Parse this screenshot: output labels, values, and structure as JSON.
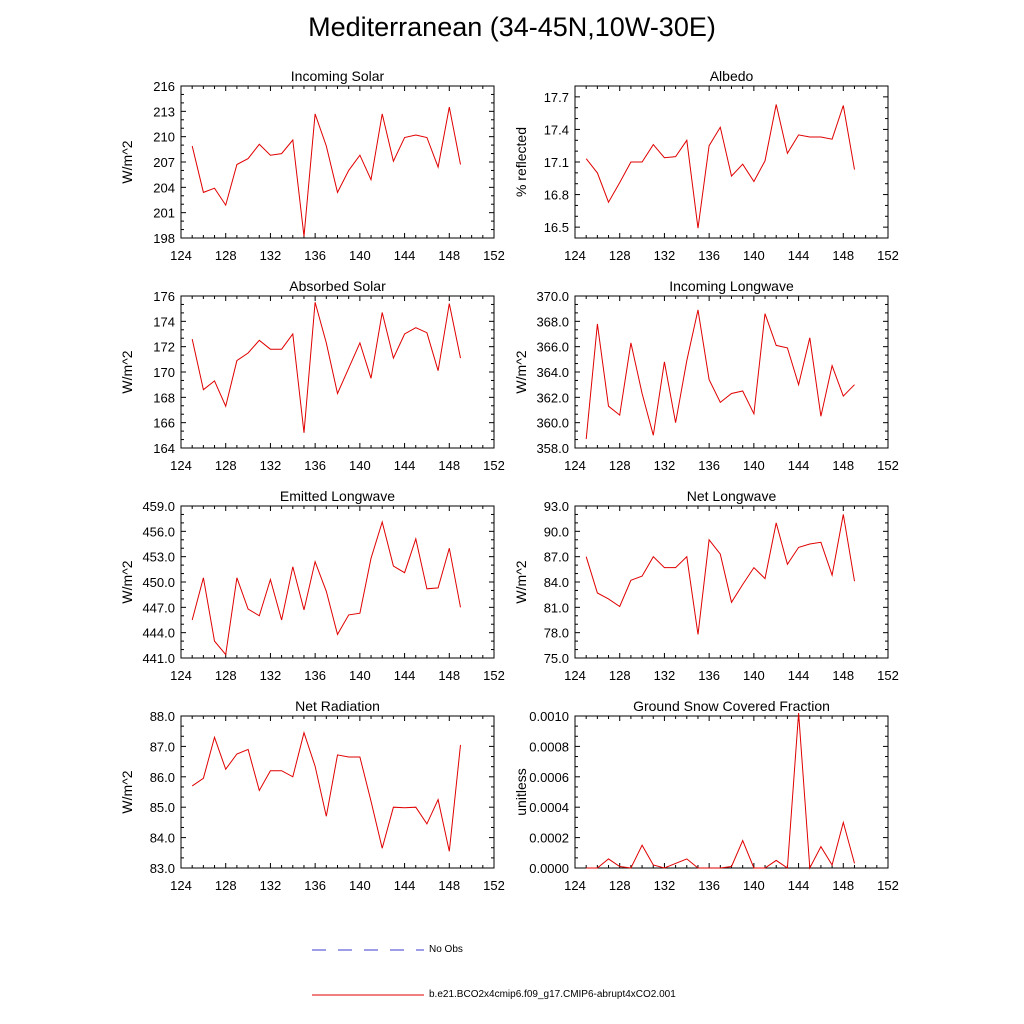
{
  "title": "Mediterranean (34-45N,10W-30E)",
  "colors": {
    "model": "#e00000",
    "obs": "#3a3ad0",
    "axis": "#000000"
  },
  "legend": {
    "obs_label": "No Obs",
    "model_label": "b.e21.BCO2x4cmip6.f09_g17.CMIP6-abrupt4xCO2.001"
  },
  "chart_data": [
    {
      "type": "line",
      "title": "Incoming Solar",
      "ylabel": "W/m^2",
      "xlim": [
        124,
        152
      ],
      "xticks": [
        124,
        128,
        132,
        136,
        140,
        144,
        148,
        152
      ],
      "ylim": [
        198,
        216
      ],
      "yticks": [
        {
          "v": 198,
          "label": "198"
        },
        {
          "v": 201,
          "label": "201"
        },
        {
          "v": 204,
          "label": "204"
        },
        {
          "v": 207,
          "label": "207"
        },
        {
          "v": 210,
          "label": "210"
        },
        {
          "v": 213,
          "label": "213"
        },
        {
          "v": 216,
          "label": "216"
        }
      ],
      "x": [
        125,
        126,
        127,
        128,
        129,
        130,
        131,
        132,
        133,
        134,
        135,
        136,
        137,
        138,
        139,
        140,
        141,
        142,
        143,
        144,
        145,
        146,
        147,
        148,
        149
      ],
      "series": [
        {
          "name": "model",
          "values": [
            208.9,
            203.4,
            203.9,
            201.9,
            206.7,
            207.4,
            209.1,
            207.8,
            208.0,
            209.6,
            198.2,
            212.7,
            208.9,
            203.4,
            206.0,
            207.8,
            204.9,
            212.7,
            207.1,
            209.9,
            210.2,
            209.9,
            206.4,
            213.5,
            206.7
          ]
        }
      ]
    },
    {
      "type": "line",
      "title": "Albedo",
      "ylabel": "% reflected",
      "xlim": [
        124,
        152
      ],
      "xticks": [
        124,
        128,
        132,
        136,
        140,
        144,
        148,
        152
      ],
      "ylim": [
        16.4,
        17.8
      ],
      "yticks": [
        {
          "v": 16.5,
          "label": "16.5"
        },
        {
          "v": 16.8,
          "label": "16.8"
        },
        {
          "v": 17.1,
          "label": "17.1"
        },
        {
          "v": 17.4,
          "label": "17.4"
        },
        {
          "v": 17.7,
          "label": "17.7"
        }
      ],
      "x": [
        125,
        126,
        127,
        128,
        129,
        130,
        131,
        132,
        133,
        134,
        135,
        136,
        137,
        138,
        139,
        140,
        141,
        142,
        143,
        144,
        145,
        146,
        147,
        148,
        149
      ],
      "series": [
        {
          "name": "model",
          "values": [
            17.13,
            17.0,
            16.73,
            16.91,
            17.1,
            17.1,
            17.26,
            17.14,
            17.15,
            17.3,
            16.49,
            17.25,
            17.42,
            16.97,
            17.08,
            16.92,
            17.11,
            17.63,
            17.18,
            17.35,
            17.33,
            17.33,
            17.31,
            17.62,
            17.03
          ]
        }
      ]
    },
    {
      "type": "line",
      "title": "Absorbed Solar",
      "ylabel": "W/m^2",
      "xlim": [
        124,
        152
      ],
      "xticks": [
        124,
        128,
        132,
        136,
        140,
        144,
        148,
        152
      ],
      "ylim": [
        164,
        176
      ],
      "yticks": [
        {
          "v": 164,
          "label": "164"
        },
        {
          "v": 166,
          "label": "166"
        },
        {
          "v": 168,
          "label": "168"
        },
        {
          "v": 170,
          "label": "170"
        },
        {
          "v": 172,
          "label": "172"
        },
        {
          "v": 174,
          "label": "174"
        },
        {
          "v": 176,
          "label": "176"
        }
      ],
      "x": [
        125,
        126,
        127,
        128,
        129,
        130,
        131,
        132,
        133,
        134,
        135,
        136,
        137,
        138,
        139,
        140,
        141,
        142,
        143,
        144,
        145,
        146,
        147,
        148,
        149
      ],
      "series": [
        {
          "name": "model",
          "values": [
            172.6,
            168.6,
            169.3,
            167.3,
            170.9,
            171.5,
            172.5,
            171.8,
            171.8,
            173.0,
            165.2,
            175.5,
            172.3,
            168.3,
            170.3,
            172.3,
            169.5,
            174.7,
            171.1,
            173.0,
            173.5,
            173.1,
            170.1,
            175.4,
            171.1
          ]
        }
      ]
    },
    {
      "type": "line",
      "title": "Incoming Longwave",
      "ylabel": "W/m^2",
      "xlim": [
        124,
        152
      ],
      "xticks": [
        124,
        128,
        132,
        136,
        140,
        144,
        148,
        152
      ],
      "ylim": [
        358,
        370
      ],
      "yticks": [
        {
          "v": 358,
          "label": "358.0"
        },
        {
          "v": 360,
          "label": "360.0"
        },
        {
          "v": 362,
          "label": "362.0"
        },
        {
          "v": 364,
          "label": "364.0"
        },
        {
          "v": 366,
          "label": "366.0"
        },
        {
          "v": 368,
          "label": "368.0"
        },
        {
          "v": 370,
          "label": "370.0"
        }
      ],
      "x": [
        125,
        126,
        127,
        128,
        129,
        130,
        131,
        132,
        133,
        134,
        135,
        136,
        137,
        138,
        139,
        140,
        141,
        142,
        143,
        144,
        145,
        146,
        147,
        148,
        149
      ],
      "series": [
        {
          "name": "model",
          "values": [
            358.7,
            367.8,
            361.3,
            360.6,
            366.3,
            362.3,
            359.0,
            364.8,
            360.0,
            364.9,
            368.9,
            363.4,
            361.6,
            362.3,
            362.5,
            360.7,
            368.6,
            366.1,
            365.9,
            363.0,
            366.7,
            360.5,
            364.5,
            362.1,
            363.0
          ]
        }
      ]
    },
    {
      "type": "line",
      "title": "Emitted Longwave",
      "ylabel": "W/m^2",
      "xlim": [
        124,
        152
      ],
      "xticks": [
        124,
        128,
        132,
        136,
        140,
        144,
        148,
        152
      ],
      "ylim": [
        441,
        459
      ],
      "yticks": [
        {
          "v": 441,
          "label": "441.0"
        },
        {
          "v": 444,
          "label": "444.0"
        },
        {
          "v": 447,
          "label": "447.0"
        },
        {
          "v": 450,
          "label": "450.0"
        },
        {
          "v": 453,
          "label": "453.0"
        },
        {
          "v": 456,
          "label": "456.0"
        },
        {
          "v": 459,
          "label": "459.0"
        }
      ],
      "x": [
        125,
        126,
        127,
        128,
        129,
        130,
        131,
        132,
        133,
        134,
        135,
        136,
        137,
        138,
        139,
        140,
        141,
        142,
        143,
        144,
        145,
        146,
        147,
        148,
        149
      ],
      "series": [
        {
          "name": "model",
          "values": [
            445.5,
            450.5,
            443.0,
            441.4,
            450.5,
            446.8,
            446.0,
            450.3,
            445.5,
            451.8,
            446.7,
            452.4,
            448.9,
            443.8,
            446.1,
            446.3,
            452.8,
            457.1,
            451.9,
            451.1,
            455.1,
            449.2,
            449.3,
            454.0,
            447.0
          ]
        }
      ]
    },
    {
      "type": "line",
      "title": "Net Longwave",
      "ylabel": "W/m^2",
      "xlim": [
        124,
        152
      ],
      "xticks": [
        124,
        128,
        132,
        136,
        140,
        144,
        148,
        152
      ],
      "ylim": [
        75,
        93
      ],
      "yticks": [
        {
          "v": 75,
          "label": "75.0"
        },
        {
          "v": 78,
          "label": "78.0"
        },
        {
          "v": 81,
          "label": "81.0"
        },
        {
          "v": 84,
          "label": "84.0"
        },
        {
          "v": 87,
          "label": "87.0"
        },
        {
          "v": 90,
          "label": "90.0"
        },
        {
          "v": 93,
          "label": "93.0"
        }
      ],
      "x": [
        125,
        126,
        127,
        128,
        129,
        130,
        131,
        132,
        133,
        134,
        135,
        136,
        137,
        138,
        139,
        140,
        141,
        142,
        143,
        144,
        145,
        146,
        147,
        148,
        149
      ],
      "series": [
        {
          "name": "model",
          "values": [
            87.0,
            82.7,
            82.0,
            81.1,
            84.2,
            84.7,
            87.0,
            85.7,
            85.7,
            87.0,
            77.8,
            89.0,
            87.3,
            81.6,
            83.7,
            85.7,
            84.4,
            91.0,
            86.1,
            88.1,
            88.5,
            88.7,
            84.8,
            92.0,
            84.1
          ]
        }
      ]
    },
    {
      "type": "line",
      "title": "Net Radiation",
      "ylabel": "W/m^2",
      "xlim": [
        124,
        152
      ],
      "xticks": [
        124,
        128,
        132,
        136,
        140,
        144,
        148,
        152
      ],
      "ylim": [
        83,
        88
      ],
      "yticks": [
        {
          "v": 83,
          "label": "83.0"
        },
        {
          "v": 84,
          "label": "84.0"
        },
        {
          "v": 85,
          "label": "85.0"
        },
        {
          "v": 86,
          "label": "86.0"
        },
        {
          "v": 87,
          "label": "87.0"
        },
        {
          "v": 88,
          "label": "88.0"
        }
      ],
      "x": [
        125,
        126,
        127,
        128,
        129,
        130,
        131,
        132,
        133,
        134,
        135,
        136,
        137,
        138,
        139,
        140,
        141,
        142,
        143,
        144,
        145,
        146,
        147,
        148,
        149
      ],
      "series": [
        {
          "name": "model",
          "values": [
            85.7,
            85.95,
            87.3,
            86.25,
            86.75,
            86.9,
            85.55,
            86.2,
            86.2,
            86.0,
            87.45,
            86.35,
            84.7,
            86.72,
            86.65,
            86.65,
            85.2,
            83.65,
            85.0,
            84.98,
            85.0,
            84.45,
            85.25,
            83.55,
            87.05
          ]
        }
      ]
    },
    {
      "type": "line",
      "title": "Ground Snow Covered Fraction",
      "ylabel": "unitless",
      "xlim": [
        124,
        152
      ],
      "xticks": [
        124,
        128,
        132,
        136,
        140,
        144,
        148,
        152
      ],
      "ylim": [
        0,
        0.001
      ],
      "yticks": [
        {
          "v": 0,
          "label": "0.0000"
        },
        {
          "v": 0.0002,
          "label": "0.0002"
        },
        {
          "v": 0.0004,
          "label": "0.0004"
        },
        {
          "v": 0.0006,
          "label": "0.0006"
        },
        {
          "v": 0.0008,
          "label": "0.0008"
        },
        {
          "v": 0.001,
          "label": "0.0010"
        }
      ],
      "x": [
        125,
        126,
        127,
        128,
        129,
        130,
        131,
        132,
        133,
        134,
        135,
        136,
        137,
        138,
        139,
        140,
        141,
        142,
        143,
        144,
        145,
        146,
        147,
        148,
        149
      ],
      "series": [
        {
          "name": "model",
          "values": [
            0,
            0,
            6e-05,
            1e-05,
            0,
            0.00015,
            2e-05,
            0,
            3e-05,
            6e-05,
            0,
            0,
            0,
            1e-05,
            0.00018,
            0,
            0,
            5e-05,
            0,
            0.00102,
            0,
            0.00014,
            2e-05,
            0.0003,
            3e-05
          ]
        }
      ]
    }
  ]
}
